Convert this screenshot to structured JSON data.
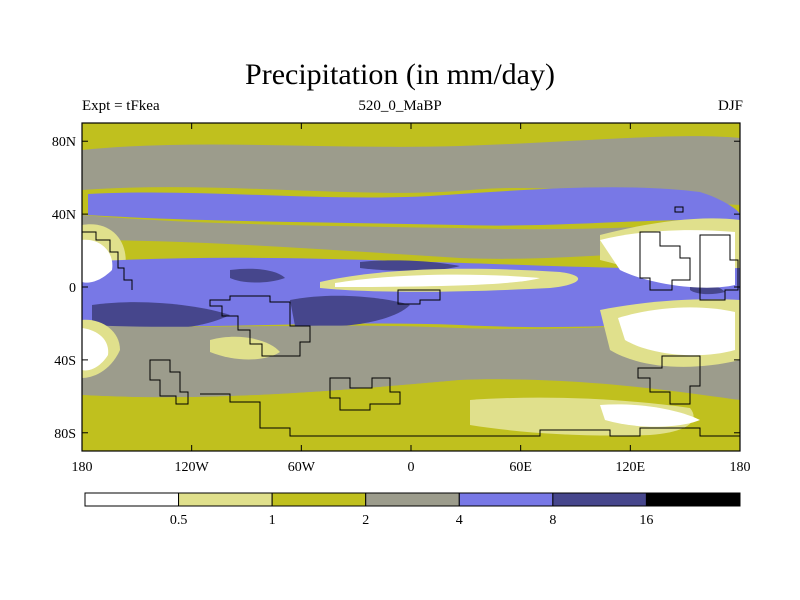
{
  "title": "Precipitation (in mm/day)",
  "subtitle_left": "Expt = tFkea",
  "subtitle_center": "520_0_MaBP",
  "subtitle_right": "DJF",
  "map_data": {
    "type": "filled-contour-map",
    "variable": "Precipitation",
    "units": "mm/day",
    "season": "DJF",
    "lon_range": [
      -180,
      180
    ],
    "lat_range": [
      -90,
      90
    ]
  },
  "axes": {
    "lat_ticks": [
      {
        "value": 80,
        "label": "80N"
      },
      {
        "value": 40,
        "label": "40N"
      },
      {
        "value": 0,
        "label": "0"
      },
      {
        "value": -40,
        "label": "40S"
      },
      {
        "value": -80,
        "label": "80S"
      }
    ],
    "lon_ticks": [
      {
        "value": -180,
        "label": "180"
      },
      {
        "value": -120,
        "label": "120W"
      },
      {
        "value": -60,
        "label": "60W"
      },
      {
        "value": 0,
        "label": "0"
      },
      {
        "value": 60,
        "label": "60E"
      },
      {
        "value": 120,
        "label": "120E"
      },
      {
        "value": 180,
        "label": "180"
      }
    ]
  },
  "colorbar": {
    "colors": [
      "#ffffff",
      "#e0e08c",
      "#c0c01e",
      "#9c9c8c",
      "#7878e6",
      "#46468c",
      "#000000"
    ],
    "labels": [
      "0.5",
      "1",
      "2",
      "4",
      "8",
      "16"
    ]
  }
}
